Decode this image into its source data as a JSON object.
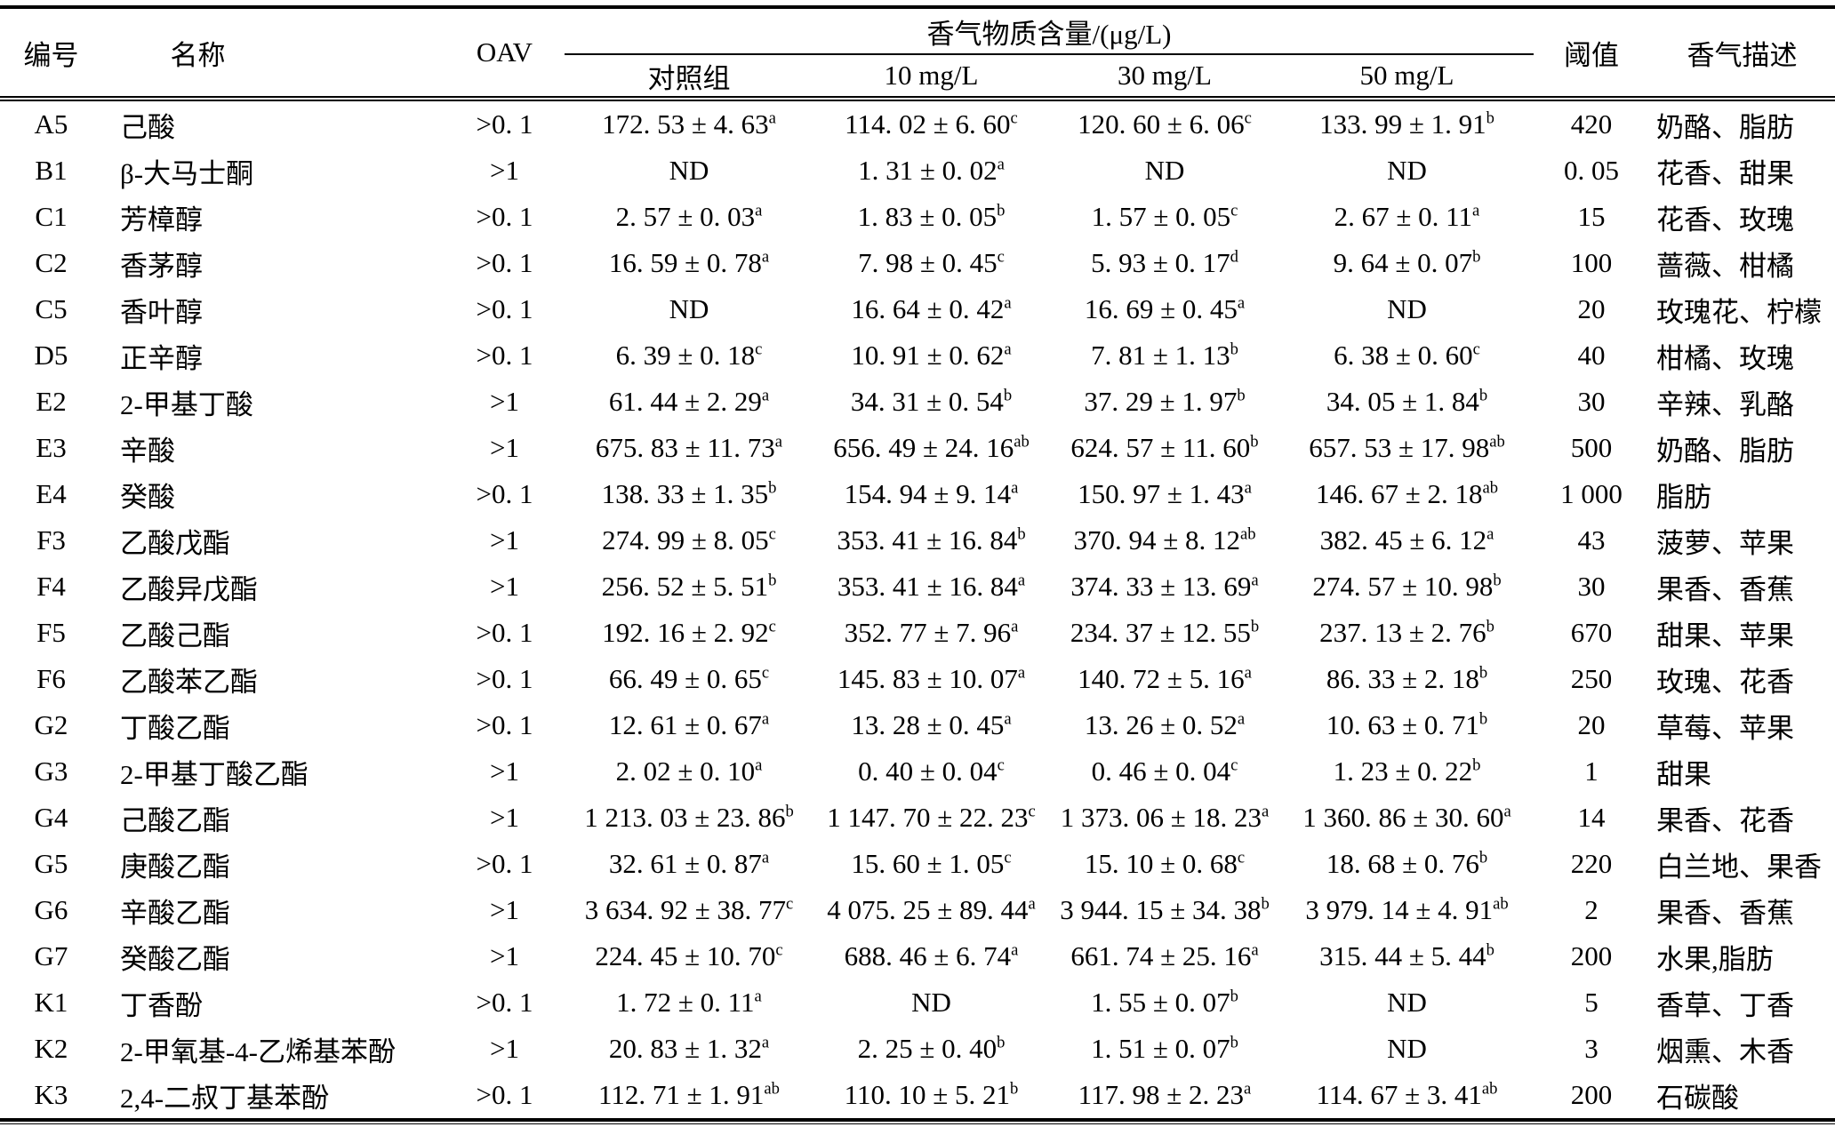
{
  "table": {
    "headers": {
      "code": "编号",
      "name": "名称",
      "oav": "OAV",
      "content_group": "香气物质含量/(μg/L)",
      "sub": [
        "对照组",
        "10 mg/L",
        "30 mg/L",
        "50 mg/L"
      ],
      "threshold": "阈值",
      "description": "香气描述"
    },
    "rows": [
      {
        "code": "A5",
        "name": "己酸",
        "oav": ">0. 1",
        "values": [
          {
            "v": "172. 53 ± 4. 63",
            "s": "a"
          },
          {
            "v": "114. 02 ± 6. 60",
            "s": "c"
          },
          {
            "v": "120. 60 ± 6. 06",
            "s": "c"
          },
          {
            "v": "133. 99 ± 1. 91",
            "s": "b"
          }
        ],
        "threshold": "420",
        "description": "奶酪、脂肪"
      },
      {
        "code": "B1",
        "name": "β-大马士酮",
        "oav": ">1",
        "values": [
          {
            "v": "ND",
            "s": ""
          },
          {
            "v": "1. 31 ± 0. 02",
            "s": "a"
          },
          {
            "v": "ND",
            "s": ""
          },
          {
            "v": "ND",
            "s": ""
          }
        ],
        "threshold": "0. 05",
        "description": "花香、甜果"
      },
      {
        "code": "C1",
        "name": "芳樟醇",
        "oav": ">0. 1",
        "values": [
          {
            "v": "2. 57 ± 0. 03",
            "s": "a"
          },
          {
            "v": "1. 83 ± 0. 05",
            "s": "b"
          },
          {
            "v": "1. 57 ± 0. 05",
            "s": "c"
          },
          {
            "v": "2. 67 ± 0. 11",
            "s": "a"
          }
        ],
        "threshold": "15",
        "description": "花香、玫瑰"
      },
      {
        "code": "C2",
        "name": "香茅醇",
        "oav": ">0. 1",
        "values": [
          {
            "v": "16. 59 ± 0. 78",
            "s": "a"
          },
          {
            "v": "7. 98 ± 0. 45",
            "s": "c"
          },
          {
            "v": "5. 93 ± 0. 17",
            "s": "d"
          },
          {
            "v": "9. 64 ± 0. 07",
            "s": "b"
          }
        ],
        "threshold": "100",
        "description": "蔷薇、柑橘"
      },
      {
        "code": "C5",
        "name": "香叶醇",
        "oav": ">0. 1",
        "values": [
          {
            "v": "ND",
            "s": ""
          },
          {
            "v": "16. 64 ± 0. 42",
            "s": "a"
          },
          {
            "v": "16. 69 ± 0. 45",
            "s": "a"
          },
          {
            "v": "ND",
            "s": ""
          }
        ],
        "threshold": "20",
        "description": "玫瑰花、柠檬"
      },
      {
        "code": "D5",
        "name": "正辛醇",
        "oav": ">0. 1",
        "values": [
          {
            "v": "6. 39 ± 0. 18",
            "s": "c"
          },
          {
            "v": "10. 91 ± 0. 62",
            "s": "a"
          },
          {
            "v": "7. 81 ± 1. 13",
            "s": "b"
          },
          {
            "v": "6. 38 ± 0. 60",
            "s": "c"
          }
        ],
        "threshold": "40",
        "description": "柑橘、玫瑰"
      },
      {
        "code": "E2",
        "name": "2-甲基丁酸",
        "oav": ">1",
        "values": [
          {
            "v": "61. 44 ± 2. 29",
            "s": "a"
          },
          {
            "v": "34. 31 ± 0. 54",
            "s": "b"
          },
          {
            "v": "37. 29 ± 1. 97",
            "s": "b"
          },
          {
            "v": "34. 05 ± 1. 84",
            "s": "b"
          }
        ],
        "threshold": "30",
        "description": "辛辣、乳酪"
      },
      {
        "code": "E3",
        "name": "辛酸",
        "oav": ">1",
        "values": [
          {
            "v": "675. 83 ± 11. 73",
            "s": "a"
          },
          {
            "v": "656. 49 ± 24. 16",
            "s": "ab"
          },
          {
            "v": "624. 57 ± 11. 60",
            "s": "b"
          },
          {
            "v": "657. 53 ± 17. 98",
            "s": "ab"
          }
        ],
        "threshold": "500",
        "description": "奶酪、脂肪"
      },
      {
        "code": "E4",
        "name": "癸酸",
        "oav": ">0. 1",
        "values": [
          {
            "v": "138. 33 ± 1. 35",
            "s": "b"
          },
          {
            "v": "154. 94 ± 9. 14",
            "s": "a"
          },
          {
            "v": "150. 97 ± 1. 43",
            "s": "a"
          },
          {
            "v": "146. 67 ± 2. 18",
            "s": "ab"
          }
        ],
        "threshold": "1 000",
        "description": "脂肪"
      },
      {
        "code": "F3",
        "name": "乙酸戊酯",
        "oav": ">1",
        "values": [
          {
            "v": "274. 99 ± 8. 05",
            "s": "c"
          },
          {
            "v": "353. 41 ± 16. 84",
            "s": "b"
          },
          {
            "v": "370. 94 ± 8. 12",
            "s": "ab"
          },
          {
            "v": "382. 45 ± 6. 12",
            "s": "a"
          }
        ],
        "threshold": "43",
        "description": "菠萝、苹果"
      },
      {
        "code": "F4",
        "name": "乙酸异戊酯",
        "oav": ">1",
        "values": [
          {
            "v": "256. 52 ± 5. 51",
            "s": "b"
          },
          {
            "v": "353. 41 ± 16. 84",
            "s": "a"
          },
          {
            "v": "374. 33 ± 13. 69",
            "s": "a"
          },
          {
            "v": "274. 57 ± 10. 98",
            "s": "b"
          }
        ],
        "threshold": "30",
        "description": "果香、香蕉"
      },
      {
        "code": "F5",
        "name": "乙酸己酯",
        "oav": ">0. 1",
        "values": [
          {
            "v": "192. 16 ± 2. 92",
            "s": "c"
          },
          {
            "v": "352. 77 ± 7. 96",
            "s": "a"
          },
          {
            "v": "234. 37 ± 12. 55",
            "s": "b"
          },
          {
            "v": "237. 13 ± 2. 76",
            "s": "b"
          }
        ],
        "threshold": "670",
        "description": "甜果、苹果"
      },
      {
        "code": "F6",
        "name": "乙酸苯乙酯",
        "oav": ">0. 1",
        "values": [
          {
            "v": "66. 49 ± 0. 65",
            "s": "c"
          },
          {
            "v": "145. 83 ± 10. 07",
            "s": "a"
          },
          {
            "v": "140. 72 ± 5. 16",
            "s": "a"
          },
          {
            "v": "86. 33 ± 2. 18",
            "s": "b"
          }
        ],
        "threshold": "250",
        "description": "玫瑰、花香"
      },
      {
        "code": "G2",
        "name": "丁酸乙酯",
        "oav": ">0. 1",
        "values": [
          {
            "v": "12. 61 ± 0. 67",
            "s": "a"
          },
          {
            "v": "13. 28 ± 0. 45",
            "s": "a"
          },
          {
            "v": "13. 26 ± 0. 52",
            "s": "a"
          },
          {
            "v": "10. 63 ± 0. 71",
            "s": "b"
          }
        ],
        "threshold": "20",
        "description": "草莓、苹果"
      },
      {
        "code": "G3",
        "name": "2-甲基丁酸乙酯",
        "oav": ">1",
        "values": [
          {
            "v": "2. 02 ± 0. 10",
            "s": "a"
          },
          {
            "v": "0. 40 ± 0. 04",
            "s": "c"
          },
          {
            "v": "0. 46 ± 0. 04",
            "s": "c"
          },
          {
            "v": "1. 23 ± 0. 22",
            "s": "b"
          }
        ],
        "threshold": "1",
        "description": "甜果"
      },
      {
        "code": "G4",
        "name": "己酸乙酯",
        "oav": ">1",
        "values": [
          {
            "v": "1 213. 03 ± 23. 86",
            "s": "b"
          },
          {
            "v": "1 147. 70 ± 22. 23",
            "s": "c"
          },
          {
            "v": "1 373. 06 ± 18. 23",
            "s": "a"
          },
          {
            "v": "1 360. 86 ± 30. 60",
            "s": "a"
          }
        ],
        "threshold": "14",
        "description": "果香、花香"
      },
      {
        "code": "G5",
        "name": "庚酸乙酯",
        "oav": ">0. 1",
        "values": [
          {
            "v": "32. 61 ± 0. 87",
            "s": "a"
          },
          {
            "v": "15. 60 ± 1. 05",
            "s": "c"
          },
          {
            "v": "15. 10 ± 0. 68",
            "s": "c"
          },
          {
            "v": "18. 68 ± 0. 76",
            "s": "b"
          }
        ],
        "threshold": "220",
        "description": "白兰地、果香"
      },
      {
        "code": "G6",
        "name": "辛酸乙酯",
        "oav": ">1",
        "values": [
          {
            "v": "3 634. 92 ± 38. 77",
            "s": "c"
          },
          {
            "v": "4 075. 25 ± 89. 44",
            "s": "a"
          },
          {
            "v": "3 944. 15 ± 34. 38",
            "s": "b"
          },
          {
            "v": "3 979. 14 ± 4. 91",
            "s": "ab"
          }
        ],
        "threshold": "2",
        "description": "果香、香蕉"
      },
      {
        "code": "G7",
        "name": "癸酸乙酯",
        "oav": ">1",
        "values": [
          {
            "v": "224. 45 ± 10. 70",
            "s": "c"
          },
          {
            "v": "688. 46 ± 6. 74",
            "s": "a"
          },
          {
            "v": "661. 74 ± 25. 16",
            "s": "a"
          },
          {
            "v": "315. 44 ± 5. 44",
            "s": "b"
          }
        ],
        "threshold": "200",
        "description": "水果,脂肪"
      },
      {
        "code": "K1",
        "name": "丁香酚",
        "oav": ">0. 1",
        "values": [
          {
            "v": "1. 72 ± 0. 11",
            "s": "a"
          },
          {
            "v": "ND",
            "s": ""
          },
          {
            "v": "1. 55 ± 0. 07",
            "s": "b"
          },
          {
            "v": "ND",
            "s": ""
          }
        ],
        "threshold": "5",
        "description": "香草、丁香"
      },
      {
        "code": "K2",
        "name": "2-甲氧基-4-乙烯基苯酚",
        "oav": ">1",
        "values": [
          {
            "v": "20. 83 ± 1. 32",
            "s": "a"
          },
          {
            "v": "2. 25 ± 0. 40",
            "s": "b"
          },
          {
            "v": "1. 51 ± 0. 07",
            "s": "b"
          },
          {
            "v": "ND",
            "s": ""
          }
        ],
        "threshold": "3",
        "description": "烟熏、木香"
      },
      {
        "code": "K3",
        "name": "2,4-二叔丁基苯酚",
        "oav": ">0. 1",
        "values": [
          {
            "v": "112. 71 ± 1. 91",
            "s": "ab"
          },
          {
            "v": "110. 10 ± 5. 21",
            "s": "b"
          },
          {
            "v": "117. 98 ± 2. 23",
            "s": "a"
          },
          {
            "v": "114. 67 ± 3. 41",
            "s": "ab"
          }
        ],
        "threshold": "200",
        "description": "石碳酸"
      }
    ]
  }
}
